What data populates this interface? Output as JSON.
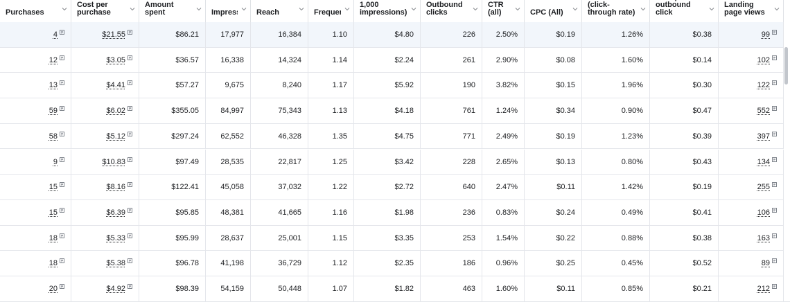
{
  "columns": [
    {
      "label": "Purchases"
    },
    {
      "label": "Cost per purchase"
    },
    {
      "label": "Amount spent"
    },
    {
      "label": "Impressions"
    },
    {
      "label": "Reach"
    },
    {
      "label": "Frequency"
    },
    {
      "label": "1,000 impressions)"
    },
    {
      "label": "Outbound clicks"
    },
    {
      "label": "CTR (all)"
    },
    {
      "label": "CPC (All)"
    },
    {
      "label": "(click-through rate)"
    },
    {
      "label": "Cost per outbound click"
    },
    {
      "label": "Landing page views"
    }
  ],
  "rows": [
    [
      "4",
      "$21.55",
      "$86.21",
      "17,977",
      "16,384",
      "1.10",
      "$4.80",
      "226",
      "2.50%",
      "$0.19",
      "1.26%",
      "$0.38",
      "99"
    ],
    [
      "12",
      "$3.05",
      "$36.57",
      "16,338",
      "14,324",
      "1.14",
      "$2.24",
      "261",
      "2.90%",
      "$0.08",
      "1.60%",
      "$0.14",
      "102"
    ],
    [
      "13",
      "$4.41",
      "$57.27",
      "9,675",
      "8,240",
      "1.17",
      "$5.92",
      "190",
      "3.82%",
      "$0.15",
      "1.96%",
      "$0.30",
      "122"
    ],
    [
      "59",
      "$6.02",
      "$355.05",
      "84,997",
      "75,343",
      "1.13",
      "$4.18",
      "761",
      "1.24%",
      "$0.34",
      "0.90%",
      "$0.47",
      "552"
    ],
    [
      "58",
      "$5.12",
      "$297.24",
      "62,552",
      "46,328",
      "1.35",
      "$4.75",
      "771",
      "2.49%",
      "$0.19",
      "1.23%",
      "$0.39",
      "397"
    ],
    [
      "9",
      "$10.83",
      "$97.49",
      "28,535",
      "22,817",
      "1.25",
      "$3.42",
      "228",
      "2.65%",
      "$0.13",
      "0.80%",
      "$0.43",
      "134"
    ],
    [
      "15",
      "$8.16",
      "$122.41",
      "45,058",
      "37,032",
      "1.22",
      "$2.72",
      "640",
      "2.47%",
      "$0.11",
      "1.42%",
      "$0.19",
      "255"
    ],
    [
      "15",
      "$6.39",
      "$95.85",
      "48,381",
      "41,665",
      "1.16",
      "$1.98",
      "236",
      "0.83%",
      "$0.24",
      "0.49%",
      "$0.41",
      "106"
    ],
    [
      "18",
      "$5.33",
      "$95.99",
      "28,637",
      "25,001",
      "1.15",
      "$3.35",
      "253",
      "1.54%",
      "$0.22",
      "0.88%",
      "$0.38",
      "163"
    ],
    [
      "18",
      "$5.38",
      "$96.78",
      "41,198",
      "36,729",
      "1.12",
      "$2.35",
      "186",
      "0.96%",
      "$0.25",
      "0.45%",
      "$0.52",
      "89"
    ],
    [
      "20",
      "$4.92",
      "$98.39",
      "54,159",
      "50,448",
      "1.07",
      "$1.82",
      "463",
      "1.60%",
      "$0.11",
      "0.85%",
      "$0.21",
      "212"
    ]
  ],
  "linked_columns": [
    0,
    1,
    12
  ],
  "icons": {
    "sort": "chevron-down-icon",
    "info": "info-badge-icon"
  },
  "colors": {
    "row_highlight": "#f2f6fb",
    "border": "#e4e6eb",
    "text": "#1c1e21"
  }
}
